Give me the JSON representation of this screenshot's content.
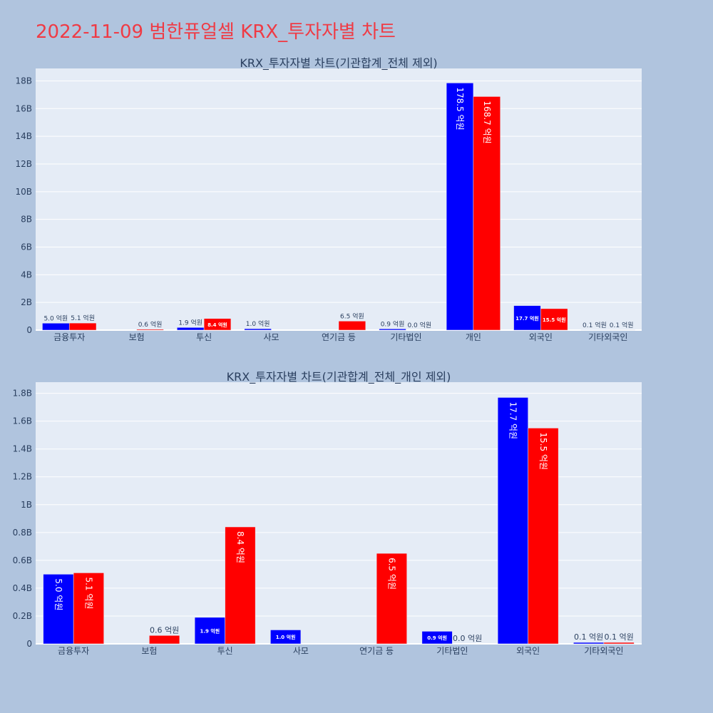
{
  "page_title": "2022-11-09 범한퓨얼셀 KRX_투자자별 차트",
  "colors": {
    "background": "#b0c4de",
    "plot_bg": "#e5ecf6",
    "grid": "#ffffff",
    "title": "#ef3b45",
    "text": "#2a3f5f",
    "series_1": "#0000ff",
    "series_2": "#ff0000"
  },
  "chart_data": [
    {
      "type": "bar",
      "title": "KRX_투자자별 차트(기관합계_전체 제외)",
      "categories": [
        "금융투자",
        "보험",
        "투신",
        "사모",
        "연기금 등",
        "기타법인",
        "개인",
        "외국인",
        "기타외국인"
      ],
      "series": [
        {
          "color": "#0000ff",
          "values": [
            500000000,
            0,
            190000000,
            100000000,
            0,
            90000000,
            17850000000,
            1770000000,
            10000000
          ],
          "labels": [
            "5.0 억원",
            "",
            "1.9 억원",
            "1.0 억원",
            "",
            "0.9 억원",
            "178.5 억원",
            "17.7 억원",
            "0.1 억원"
          ]
        },
        {
          "color": "#ff0000",
          "values": [
            510000000,
            60000000,
            840000000,
            0,
            650000000,
            0,
            16870000000,
            1550000000,
            10000000
          ],
          "labels": [
            "5.1 억원",
            "0.6 억원",
            "8.4 억원",
            "",
            "6.5 억원",
            "0.0 억원",
            "168.7 억원",
            "15.5 억원",
            "0.1 억원"
          ]
        }
      ],
      "y_ticks": [
        0,
        2000000000,
        4000000000,
        6000000000,
        8000000000,
        10000000000,
        12000000000,
        14000000000,
        16000000000,
        18000000000
      ],
      "y_tick_labels": [
        "0",
        "2B",
        "4B",
        "6B",
        "8B",
        "10B",
        "12B",
        "14B",
        "16B",
        "18B"
      ],
      "ylim": [
        0,
        18900000000
      ],
      "grid": true
    },
    {
      "type": "bar",
      "title": "KRX_투자자별 차트(기관합계_전체_개인 제외)",
      "categories": [
        "금융투자",
        "보험",
        "투신",
        "사모",
        "연기금 등",
        "기타법인",
        "외국인",
        "기타외국인"
      ],
      "series": [
        {
          "color": "#0000ff",
          "values": [
            500000000,
            0,
            190000000,
            100000000,
            0,
            90000000,
            1770000000,
            10000000
          ],
          "labels": [
            "5.0 억원",
            "",
            "1.9 억원",
            "1.0 억원",
            "",
            "0.9 억원",
            "17.7 억원",
            "0.1 억원"
          ]
        },
        {
          "color": "#ff0000",
          "values": [
            510000000,
            60000000,
            840000000,
            0,
            650000000,
            0,
            1550000000,
            10000000
          ],
          "labels": [
            "5.1 억원",
            "0.6 억원",
            "8.4 억원",
            "",
            "6.5 억원",
            "0.0 억원",
            "15.5 억원",
            "0.1 억원"
          ]
        }
      ],
      "y_ticks": [
        0,
        200000000,
        400000000,
        600000000,
        800000000,
        1000000000,
        1200000000,
        1400000000,
        1600000000,
        1800000000
      ],
      "y_tick_labels": [
        "0",
        "0.2B",
        "0.4B",
        "0.6B",
        "0.8B",
        "1B",
        "1.2B",
        "1.4B",
        "1.6B",
        "1.8B"
      ],
      "ylim": [
        0,
        1880000000
      ],
      "grid": true
    }
  ]
}
